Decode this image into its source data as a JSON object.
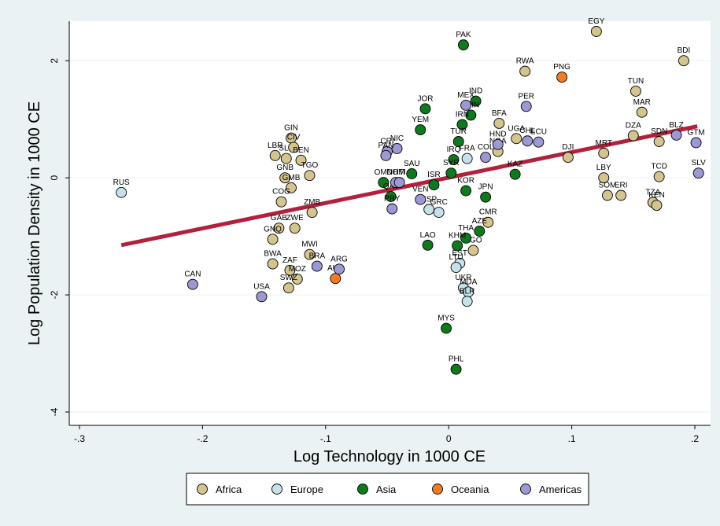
{
  "chart_data": {
    "type": "scatter",
    "xlabel": "Log Technology in 1000 CE",
    "ylabel": "Log Population Density in 1000 CE",
    "xlim": [
      -0.3,
      0.2
    ],
    "ylim": [
      -4,
      2.5
    ],
    "x_ticks": [
      -0.3,
      -0.2,
      -0.1,
      0,
      0.1,
      0.2
    ],
    "x_tick_labels": [
      "-.3",
      "-.2",
      "-.1",
      "0",
      ".1",
      ".2"
    ],
    "y_ticks": [
      -4,
      -2,
      0,
      2
    ],
    "y_tick_labels": [
      "-4",
      "-2",
      "0",
      "2"
    ],
    "grid": "horizontal",
    "legend_position": "bottom",
    "fit_line": {
      "color": "#b2213c",
      "x": [
        -0.266,
        0.202
      ],
      "y": [
        -1.15,
        0.88
      ]
    },
    "series": [
      {
        "name": "Africa",
        "color": "#d4c48e",
        "points": [
          {
            "label": "EGY",
            "x": 0.12,
            "y": 2.5
          },
          {
            "label": "BDI",
            "x": 0.191,
            "y": 2.0
          },
          {
            "label": "RWA",
            "x": 0.062,
            "y": 1.82
          },
          {
            "label": "TUN",
            "x": 0.152,
            "y": 1.48
          },
          {
            "label": "MAR",
            "x": 0.157,
            "y": 1.12
          },
          {
            "label": "BFA",
            "x": 0.041,
            "y": 0.93
          },
          {
            "label": "DZA",
            "x": 0.15,
            "y": 0.72
          },
          {
            "label": "UGA",
            "x": 0.055,
            "y": 0.67
          },
          {
            "label": "SDN",
            "x": 0.171,
            "y": 0.62
          },
          {
            "label": "MRT",
            "x": 0.126,
            "y": 0.42
          },
          {
            "label": "DJI",
            "x": 0.097,
            "y": 0.35
          },
          {
            "label": "NGA",
            "x": 0.04,
            "y": 0.45
          },
          {
            "label": "TCD",
            "x": 0.171,
            "y": 0.02
          },
          {
            "label": "LBY",
            "x": 0.126,
            "y": 0.0
          },
          {
            "label": "SOM",
            "x": 0.129,
            "y": -0.3
          },
          {
            "label": "ERI",
            "x": 0.14,
            "y": -0.3
          },
          {
            "label": "TZA",
            "x": 0.166,
            "y": -0.42
          },
          {
            "label": "KEN",
            "x": 0.169,
            "y": -0.47
          },
          {
            "label": "GIN",
            "x": -0.128,
            "y": 0.68
          },
          {
            "label": "LBR",
            "x": -0.141,
            "y": 0.38
          },
          {
            "label": "SLE",
            "x": -0.132,
            "y": 0.33
          },
          {
            "label": "CIV",
            "x": -0.126,
            "y": 0.52
          },
          {
            "label": "BEN",
            "x": -0.12,
            "y": 0.3
          },
          {
            "label": "TGO",
            "x": -0.113,
            "y": 0.04
          },
          {
            "label": "GNB",
            "x": -0.133,
            "y": 0.0
          },
          {
            "label": "GMB",
            "x": -0.128,
            "y": -0.17
          },
          {
            "label": "COG",
            "x": -0.136,
            "y": -0.41
          },
          {
            "label": "ZMB",
            "x": -0.111,
            "y": -0.59
          },
          {
            "label": "GAB",
            "x": -0.138,
            "y": -0.86
          },
          {
            "label": "ZWE",
            "x": -0.125,
            "y": -0.86
          },
          {
            "label": "GNQ",
            "x": -0.143,
            "y": -1.05
          },
          {
            "label": "BWA",
            "x": -0.143,
            "y": -1.47
          },
          {
            "label": "MWI",
            "x": -0.113,
            "y": -1.31
          },
          {
            "label": "ZAF",
            "x": -0.129,
            "y": -1.58
          },
          {
            "label": "MOZ",
            "x": -0.123,
            "y": -1.73
          },
          {
            "label": "SWZ",
            "x": -0.13,
            "y": -1.88
          },
          {
            "label": "CMR",
            "x": 0.032,
            "y": -0.76
          },
          {
            "label": "AGO",
            "x": 0.02,
            "y": -1.24
          }
        ]
      },
      {
        "name": "Europe",
        "color": "#c5e2ea",
        "points": [
          {
            "label": "RUS",
            "x": -0.266,
            "y": -0.25
          },
          {
            "label": "ESP",
            "x": -0.016,
            "y": -0.54
          },
          {
            "label": "GRC",
            "x": -0.008,
            "y": -0.59
          },
          {
            "label": "EST",
            "x": 0.009,
            "y": -1.46
          },
          {
            "label": "LTU",
            "x": 0.006,
            "y": -1.53
          },
          {
            "label": "UKR",
            "x": 0.012,
            "y": -1.88
          },
          {
            "label": "MDA",
            "x": 0.016,
            "y": -1.95
          },
          {
            "label": "BLR",
            "x": 0.015,
            "y": -2.11
          },
          {
            "label": "FRA",
            "x": 0.015,
            "y": 0.33
          }
        ]
      },
      {
        "name": "Asia",
        "color": "#0e7a1e",
        "points": [
          {
            "label": "PAK",
            "x": 0.012,
            "y": 2.27
          },
          {
            "label": "IND",
            "x": 0.022,
            "y": 1.31
          },
          {
            "label": "JOR",
            "x": -0.019,
            "y": 1.18
          },
          {
            "label": "YEM",
            "x": -0.023,
            "y": 0.82
          },
          {
            "label": "SAU",
            "x": -0.03,
            "y": 0.07
          },
          {
            "label": "KAZ",
            "x": 0.054,
            "y": 0.06
          },
          {
            "label": "OMN",
            "x": -0.053,
            "y": -0.08
          },
          {
            "label": "QAT",
            "x": -0.047,
            "y": -0.32
          },
          {
            "label": "ISR",
            "x": -0.012,
            "y": -0.12
          },
          {
            "label": "AZE",
            "x": 0.025,
            "y": -0.91
          },
          {
            "label": "THA",
            "x": 0.014,
            "y": -1.03
          },
          {
            "label": "LAO",
            "x": -0.017,
            "y": -1.15
          },
          {
            "label": "KHM",
            "x": 0.007,
            "y": -1.16
          },
          {
            "label": "MYS",
            "x": -0.002,
            "y": -2.57
          },
          {
            "label": "PHL",
            "x": 0.006,
            "y": -3.27
          },
          {
            "label": "CHN",
            "x": 0.018,
            "y": 1.07
          },
          {
            "label": "IRN",
            "x": 0.011,
            "y": 0.91
          },
          {
            "label": "TUR",
            "x": 0.008,
            "y": 0.62
          },
          {
            "label": "IRQ",
            "x": 0.004,
            "y": 0.31
          },
          {
            "label": "SYR",
            "x": 0.002,
            "y": 0.08
          },
          {
            "label": "KOR",
            "x": 0.014,
            "y": -0.22
          },
          {
            "label": "JPN",
            "x": 0.03,
            "y": -0.33
          }
        ]
      },
      {
        "name": "Oceania",
        "color": "#f47c20",
        "points": [
          {
            "label": "PNG",
            "x": 0.092,
            "y": 1.72
          },
          {
            "label": "AUS",
            "x": -0.092,
            "y": -1.72
          }
        ]
      },
      {
        "name": "Americas",
        "color": "#9c98d4",
        "points": [
          {
            "label": "PER",
            "x": 0.063,
            "y": 1.22
          },
          {
            "label": "CHL",
            "x": 0.064,
            "y": 0.63
          },
          {
            "label": "ECU",
            "x": 0.073,
            "y": 0.61
          },
          {
            "label": "BLZ",
            "x": 0.185,
            "y": 0.73
          },
          {
            "label": "GTM",
            "x": 0.201,
            "y": 0.6
          },
          {
            "label": "SLV",
            "x": 0.203,
            "y": 0.08
          },
          {
            "label": "MEX",
            "x": 0.014,
            "y": 1.24
          },
          {
            "label": "NIC",
            "x": -0.042,
            "y": 0.5
          },
          {
            "label": "CRI",
            "x": -0.05,
            "y": 0.45
          },
          {
            "label": "PAN",
            "x": -0.051,
            "y": 0.38
          },
          {
            "label": "VEN",
            "x": -0.023,
            "y": -0.37
          },
          {
            "label": "DOM",
            "x": -0.043,
            "y": -0.08
          },
          {
            "label": "HTI",
            "x": -0.04,
            "y": -0.08
          },
          {
            "label": "PRY",
            "x": -0.046,
            "y": -0.53
          },
          {
            "label": "ARG",
            "x": -0.089,
            "y": -1.56
          },
          {
            "label": "BRA",
            "x": -0.107,
            "y": -1.51
          },
          {
            "label": "CAN",
            "x": -0.208,
            "y": -1.82
          },
          {
            "label": "USA",
            "x": -0.152,
            "y": -2.03
          },
          {
            "label": "HND",
            "x": 0.04,
            "y": 0.57
          },
          {
            "label": "COL",
            "x": 0.03,
            "y": 0.35
          }
        ]
      }
    ]
  }
}
